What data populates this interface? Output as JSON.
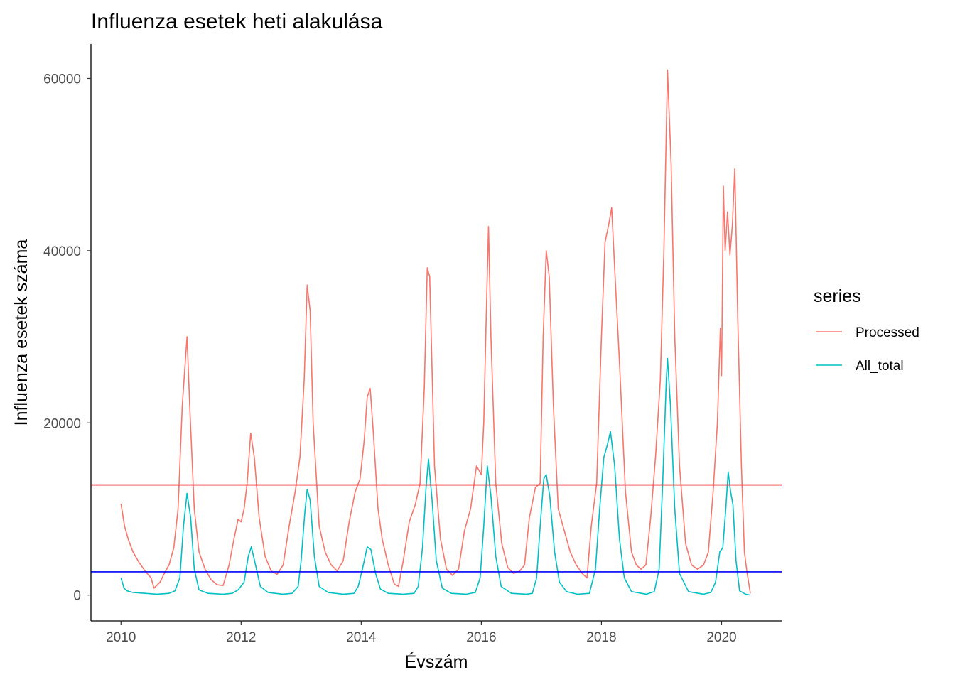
{
  "chart_data": {
    "type": "line",
    "title": "Influenza esetek heti alakulása",
    "xlabel": "Évszám",
    "ylabel": "Influenza esetek száma",
    "xlim": [
      2009.5,
      2021.0
    ],
    "ylim": [
      -3000,
      64000
    ],
    "x_ticks": [
      2010,
      2012,
      2014,
      2016,
      2018,
      2020
    ],
    "x_tick_labels": [
      "2010",
      "2012",
      "2014",
      "2016",
      "2018",
      "2020"
    ],
    "y_ticks": [
      0,
      20000,
      40000,
      60000
    ],
    "y_tick_labels": [
      "0",
      "20000",
      "40000",
      "60000"
    ],
    "grid": false,
    "legend": {
      "title": "series",
      "placement": "right"
    },
    "series": [
      {
        "name": "Processed",
        "color": "#F8766D",
        "points": [
          [
            2010.0,
            10600
          ],
          [
            2010.06,
            8000
          ],
          [
            2010.12,
            6500
          ],
          [
            2010.2,
            5000
          ],
          [
            2010.3,
            3800
          ],
          [
            2010.4,
            2800
          ],
          [
            2010.5,
            2000
          ],
          [
            2010.55,
            800
          ],
          [
            2010.65,
            1500
          ],
          [
            2010.72,
            2500
          ],
          [
            2010.8,
            3500
          ],
          [
            2010.88,
            5500
          ],
          [
            2010.95,
            10000
          ],
          [
            2011.02,
            22000
          ],
          [
            2011.1,
            30000
          ],
          [
            2011.15,
            21000
          ],
          [
            2011.22,
            10000
          ],
          [
            2011.3,
            5000
          ],
          [
            2011.4,
            3000
          ],
          [
            2011.5,
            1800
          ],
          [
            2011.6,
            1200
          ],
          [
            2011.7,
            1100
          ],
          [
            2011.8,
            3500
          ],
          [
            2011.88,
            6500
          ],
          [
            2011.95,
            8800
          ],
          [
            2012.0,
            8500
          ],
          [
            2012.05,
            10000
          ],
          [
            2012.1,
            13000
          ],
          [
            2012.16,
            18800
          ],
          [
            2012.22,
            16000
          ],
          [
            2012.3,
            9000
          ],
          [
            2012.4,
            4500
          ],
          [
            2012.5,
            2800
          ],
          [
            2012.6,
            2400
          ],
          [
            2012.7,
            3500
          ],
          [
            2012.8,
            8000
          ],
          [
            2012.9,
            12000
          ],
          [
            2012.98,
            16000
          ],
          [
            2013.05,
            25000
          ],
          [
            2013.1,
            36000
          ],
          [
            2013.15,
            33000
          ],
          [
            2013.2,
            20000
          ],
          [
            2013.3,
            8000
          ],
          [
            2013.4,
            5000
          ],
          [
            2013.5,
            3500
          ],
          [
            2013.6,
            2800
          ],
          [
            2013.7,
            4000
          ],
          [
            2013.8,
            8500
          ],
          [
            2013.9,
            12000
          ],
          [
            2013.98,
            13500
          ],
          [
            2014.05,
            18000
          ],
          [
            2014.1,
            23000
          ],
          [
            2014.15,
            24000
          ],
          [
            2014.2,
            19000
          ],
          [
            2014.28,
            10000
          ],
          [
            2014.35,
            6500
          ],
          [
            2014.45,
            3500
          ],
          [
            2014.55,
            1300
          ],
          [
            2014.62,
            1000
          ],
          [
            2014.7,
            4000
          ],
          [
            2014.8,
            8500
          ],
          [
            2014.9,
            10500
          ],
          [
            2014.98,
            13000
          ],
          [
            2015.05,
            24000
          ],
          [
            2015.1,
            38000
          ],
          [
            2015.14,
            37000
          ],
          [
            2015.22,
            15000
          ],
          [
            2015.32,
            6500
          ],
          [
            2015.42,
            3000
          ],
          [
            2015.52,
            2300
          ],
          [
            2015.62,
            3000
          ],
          [
            2015.72,
            7500
          ],
          [
            2015.82,
            10000
          ],
          [
            2015.92,
            15000
          ],
          [
            2016.0,
            14000
          ],
          [
            2016.04,
            20000
          ],
          [
            2016.08,
            32000
          ],
          [
            2016.12,
            42800
          ],
          [
            2016.16,
            30000
          ],
          [
            2016.24,
            13000
          ],
          [
            2016.34,
            6000
          ],
          [
            2016.44,
            3200
          ],
          [
            2016.54,
            2500
          ],
          [
            2016.64,
            2800
          ],
          [
            2016.72,
            3500
          ],
          [
            2016.8,
            9000
          ],
          [
            2016.9,
            12500
          ],
          [
            2016.98,
            13000
          ],
          [
            2017.03,
            30000
          ],
          [
            2017.08,
            40000
          ],
          [
            2017.13,
            37000
          ],
          [
            2017.2,
            22000
          ],
          [
            2017.28,
            10000
          ],
          [
            2017.38,
            7500
          ],
          [
            2017.48,
            5000
          ],
          [
            2017.58,
            3500
          ],
          [
            2017.68,
            2500
          ],
          [
            2017.76,
            2000
          ],
          [
            2017.83,
            8000
          ],
          [
            2017.92,
            13000
          ],
          [
            2018.0,
            30000
          ],
          [
            2018.06,
            41000
          ],
          [
            2018.12,
            43000
          ],
          [
            2018.17,
            45000
          ],
          [
            2018.22,
            38000
          ],
          [
            2018.3,
            27000
          ],
          [
            2018.4,
            12000
          ],
          [
            2018.5,
            5000
          ],
          [
            2018.58,
            3500
          ],
          [
            2018.66,
            3000
          ],
          [
            2018.74,
            3500
          ],
          [
            2018.82,
            9000
          ],
          [
            2018.9,
            16000
          ],
          [
            2018.98,
            25000
          ],
          [
            2019.04,
            40000
          ],
          [
            2019.1,
            61000
          ],
          [
            2019.16,
            50000
          ],
          [
            2019.22,
            30000
          ],
          [
            2019.3,
            15000
          ],
          [
            2019.4,
            6000
          ],
          [
            2019.5,
            3500
          ],
          [
            2019.6,
            3000
          ],
          [
            2019.7,
            3500
          ],
          [
            2019.78,
            5000
          ],
          [
            2019.86,
            12000
          ],
          [
            2019.93,
            20000
          ],
          [
            2019.98,
            31000
          ],
          [
            2020.0,
            25500
          ],
          [
            2020.03,
            47500
          ],
          [
            2020.06,
            40000
          ],
          [
            2020.1,
            44500
          ],
          [
            2020.14,
            39500
          ],
          [
            2020.18,
            43000
          ],
          [
            2020.22,
            49500
          ],
          [
            2020.27,
            32000
          ],
          [
            2020.33,
            15000
          ],
          [
            2020.38,
            5000
          ],
          [
            2020.42,
            2800
          ],
          [
            2020.48,
            200
          ]
        ]
      },
      {
        "name": "All_total",
        "color": "#00BFC4",
        "points": [
          [
            2010.0,
            2000
          ],
          [
            2010.05,
            800
          ],
          [
            2010.1,
            500
          ],
          [
            2010.2,
            300
          ],
          [
            2010.4,
            200
          ],
          [
            2010.6,
            100
          ],
          [
            2010.8,
            200
          ],
          [
            2010.9,
            500
          ],
          [
            2010.98,
            2000
          ],
          [
            2011.04,
            8000
          ],
          [
            2011.1,
            11800
          ],
          [
            2011.16,
            9000
          ],
          [
            2011.22,
            3000
          ],
          [
            2011.3,
            600
          ],
          [
            2011.45,
            200
          ],
          [
            2011.7,
            100
          ],
          [
            2011.85,
            200
          ],
          [
            2011.95,
            600
          ],
          [
            2012.05,
            1500
          ],
          [
            2012.12,
            4500
          ],
          [
            2012.17,
            5600
          ],
          [
            2012.24,
            3500
          ],
          [
            2012.32,
            1000
          ],
          [
            2012.45,
            300
          ],
          [
            2012.7,
            100
          ],
          [
            2012.85,
            200
          ],
          [
            2012.95,
            1000
          ],
          [
            2013.0,
            4000
          ],
          [
            2013.06,
            9500
          ],
          [
            2013.1,
            12300
          ],
          [
            2013.15,
            11000
          ],
          [
            2013.22,
            4500
          ],
          [
            2013.3,
            1000
          ],
          [
            2013.45,
            300
          ],
          [
            2013.7,
            100
          ],
          [
            2013.88,
            200
          ],
          [
            2013.95,
            1000
          ],
          [
            2014.02,
            3000
          ],
          [
            2014.1,
            5600
          ],
          [
            2014.16,
            5300
          ],
          [
            2014.24,
            2500
          ],
          [
            2014.32,
            700
          ],
          [
            2014.45,
            200
          ],
          [
            2014.7,
            100
          ],
          [
            2014.88,
            200
          ],
          [
            2014.95,
            1000
          ],
          [
            2015.02,
            5500
          ],
          [
            2015.08,
            12500
          ],
          [
            2015.12,
            15800
          ],
          [
            2015.18,
            11000
          ],
          [
            2015.25,
            4000
          ],
          [
            2015.35,
            800
          ],
          [
            2015.5,
            200
          ],
          [
            2015.75,
            100
          ],
          [
            2015.9,
            300
          ],
          [
            2015.98,
            2000
          ],
          [
            2016.04,
            8000
          ],
          [
            2016.1,
            15000
          ],
          [
            2016.16,
            11500
          ],
          [
            2016.24,
            4500
          ],
          [
            2016.33,
            1000
          ],
          [
            2016.5,
            200
          ],
          [
            2016.75,
            100
          ],
          [
            2016.85,
            200
          ],
          [
            2016.92,
            2000
          ],
          [
            2016.98,
            8000
          ],
          [
            2017.04,
            13500
          ],
          [
            2017.08,
            14000
          ],
          [
            2017.14,
            11500
          ],
          [
            2017.22,
            5000
          ],
          [
            2017.3,
            1500
          ],
          [
            2017.42,
            400
          ],
          [
            2017.6,
            100
          ],
          [
            2017.8,
            200
          ],
          [
            2017.9,
            3000
          ],
          [
            2017.97,
            10000
          ],
          [
            2018.04,
            16000
          ],
          [
            2018.1,
            17500
          ],
          [
            2018.15,
            19000
          ],
          [
            2018.22,
            15000
          ],
          [
            2018.3,
            6500
          ],
          [
            2018.38,
            2000
          ],
          [
            2018.5,
            400
          ],
          [
            2018.75,
            100
          ],
          [
            2018.88,
            400
          ],
          [
            2018.96,
            3000
          ],
          [
            2019.02,
            13000
          ],
          [
            2019.08,
            25000
          ],
          [
            2019.1,
            27500
          ],
          [
            2019.15,
            22000
          ],
          [
            2019.22,
            10000
          ],
          [
            2019.3,
            2500
          ],
          [
            2019.45,
            400
          ],
          [
            2019.7,
            100
          ],
          [
            2019.82,
            300
          ],
          [
            2019.9,
            1500
          ],
          [
            2019.97,
            5000
          ],
          [
            2020.02,
            5500
          ],
          [
            2020.07,
            10000
          ],
          [
            2020.11,
            14300
          ],
          [
            2020.15,
            12000
          ],
          [
            2020.19,
            10500
          ],
          [
            2020.24,
            4000
          ],
          [
            2020.3,
            500
          ],
          [
            2020.4,
            100
          ],
          [
            2020.48,
            0
          ]
        ]
      }
    ],
    "reference_lines": [
      {
        "y": 12800,
        "color": "#FF0000"
      },
      {
        "y": 2700,
        "color": "#0000FF"
      }
    ]
  }
}
